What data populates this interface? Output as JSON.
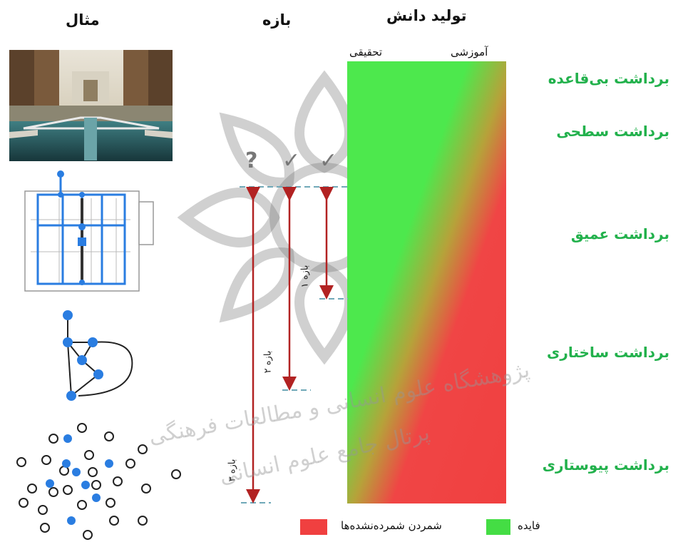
{
  "headers": {
    "example": "مثال",
    "range": "بازه",
    "knowledge_production": "تولید دانش",
    "research": "تحقیقی",
    "educational": "آموزشی"
  },
  "levels": [
    "برداشت بی‌قاعده",
    "برداشت سطحی",
    "برداشت عمیق",
    "برداشت ساختاری",
    "برداشت پیوستاری"
  ],
  "ranges": [
    "بازه ۱",
    "بازه ۲",
    "بازه ۳"
  ],
  "marks": [
    "?",
    "✓",
    "✓"
  ],
  "legend": {
    "uncounted": "شمردن شمرده‌نشده‌ها",
    "benefit": "فایده",
    "uncounted_color": "#f04040",
    "benefit_color": "#44dd44"
  },
  "watermark": {
    "line1": "پژوهشگاه علوم انسانی و مطالعات فرهنگی",
    "line2": "پرتال جامع علوم انسانی"
  }
}
